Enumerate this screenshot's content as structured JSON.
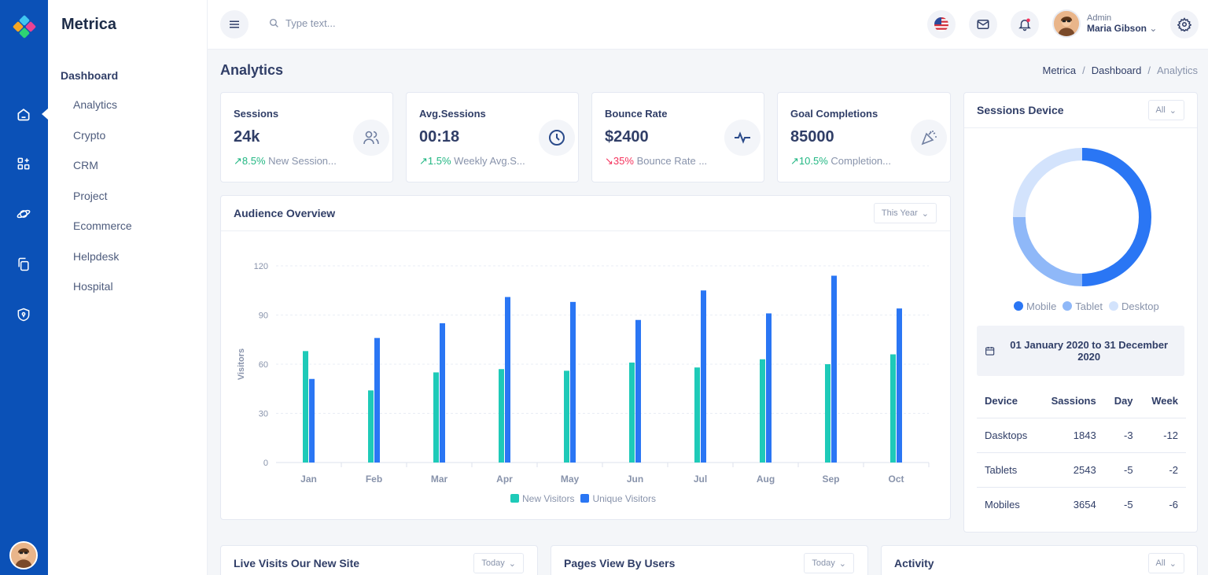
{
  "app": {
    "name": "Metrica"
  },
  "search": {
    "placeholder": "Type text..."
  },
  "user": {
    "role": "Admin",
    "name": "Maria Gibson"
  },
  "sidebar": {
    "section": "Dashboard",
    "items": [
      "Analytics",
      "Crypto",
      "CRM",
      "Project",
      "Ecommerce",
      "Helpdesk",
      "Hospital"
    ]
  },
  "page": {
    "title": "Analytics"
  },
  "breadcrumb": [
    "Metrica",
    "Dashboard",
    "Analytics"
  ],
  "stats": [
    {
      "label": "Sessions",
      "value": "24k",
      "trend": "up",
      "change": "8.5%",
      "note": "New Session..."
    },
    {
      "label": "Avg.Sessions",
      "value": "00:18",
      "trend": "up",
      "change": "1.5%",
      "note": "Weekly Avg.S..."
    },
    {
      "label": "Bounce Rate",
      "value": "$2400",
      "trend": "down",
      "change": "35%",
      "note": "Bounce Rate ..."
    },
    {
      "label": "Goal Completions",
      "value": "85000",
      "trend": "up",
      "change": "10.5%",
      "note": "Completion..."
    }
  ],
  "audience": {
    "title": "Audience Overview",
    "filter": "This Year"
  },
  "chart_data": [
    {
      "type": "bar",
      "ylabel": "Visitors",
      "xlabel": "",
      "categories": [
        "Jan",
        "Feb",
        "Mar",
        "Apr",
        "May",
        "Jun",
        "Jul",
        "Aug",
        "Sep",
        "Oct"
      ],
      "series": [
        {
          "name": "New Visitors",
          "color": "#1ecab8",
          "values": [
            68,
            44,
            55,
            57,
            56,
            61,
            58,
            63,
            60,
            66
          ]
        },
        {
          "name": "Unique Visitors",
          "color": "#2a76f4",
          "values": [
            51,
            76,
            85,
            101,
            98,
            87,
            105,
            91,
            114,
            94
          ]
        }
      ],
      "ylim": [
        0,
        120
      ],
      "yticks": [
        0,
        30,
        60,
        90,
        120
      ],
      "grid": true,
      "legend": "bottom-center"
    },
    {
      "type": "pie",
      "title": "Sessions Device",
      "categories": [
        "Mobile",
        "Tablet",
        "Desktop"
      ],
      "values": [
        50,
        25,
        25
      ],
      "colors": [
        "#2a76f4",
        "#8fb8f8",
        "#d3e3fc"
      ],
      "legend": "bottom-center"
    }
  ],
  "sessions_device": {
    "title": "Sessions Device",
    "filter": "All",
    "date_range": "01 January 2020 to 31 December 2020",
    "table": {
      "headers": [
        "Device",
        "Sassions",
        "Day",
        "Week"
      ],
      "rows": [
        [
          "Dasktops",
          "1843",
          "-3",
          "-12"
        ],
        [
          "Tablets",
          "2543",
          "-5",
          "-2"
        ],
        [
          "Mobiles",
          "3654",
          "-5",
          "-6"
        ]
      ]
    }
  },
  "bottom_cards": [
    {
      "title": "Live Visits Our New Site",
      "filter": "Today"
    },
    {
      "title": "Pages View By Users",
      "filter": "Today"
    },
    {
      "title": "Activity",
      "filter": "All"
    }
  ]
}
